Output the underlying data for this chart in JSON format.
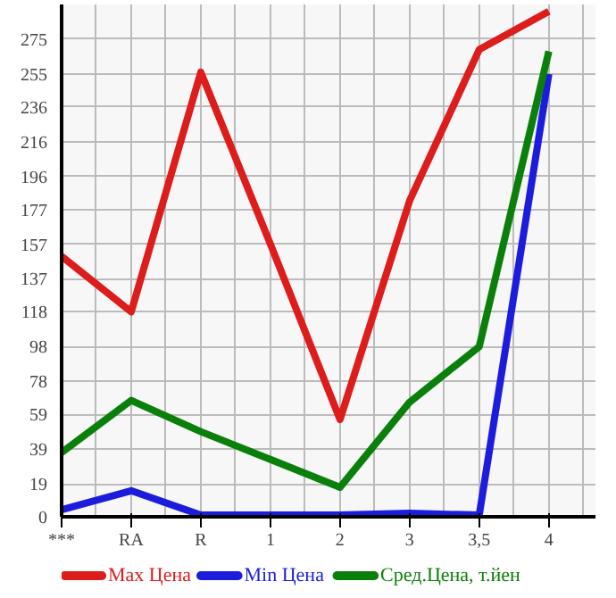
{
  "chart_data": {
    "type": "line",
    "categories": [
      "***",
      "RA",
      "R",
      "1",
      "2",
      "3",
      "3,5",
      "4"
    ],
    "series": [
      {
        "name": "Max Цена",
        "color": "#dd1c1c",
        "values": [
          150,
          118,
          256,
          157,
          56,
          182,
          269,
          291
        ]
      },
      {
        "name": "Min Цена",
        "color": "#1c1cdd",
        "values": [
          4,
          15,
          1,
          1,
          1,
          2,
          1,
          255
        ]
      },
      {
        "name": "Сред.Цена, т.йен",
        "color": "#0a800a",
        "values": [
          37,
          67,
          49,
          33,
          17,
          66,
          98,
          268
        ]
      }
    ],
    "ylim": [
      0,
      295
    ],
    "yticks": [
      0,
      19,
      39,
      59,
      78,
      98,
      118,
      137,
      157,
      177,
      196,
      216,
      236,
      255,
      275
    ],
    "grid": true,
    "legend": "bottom",
    "marker": "none",
    "line_style": "solid"
  }
}
